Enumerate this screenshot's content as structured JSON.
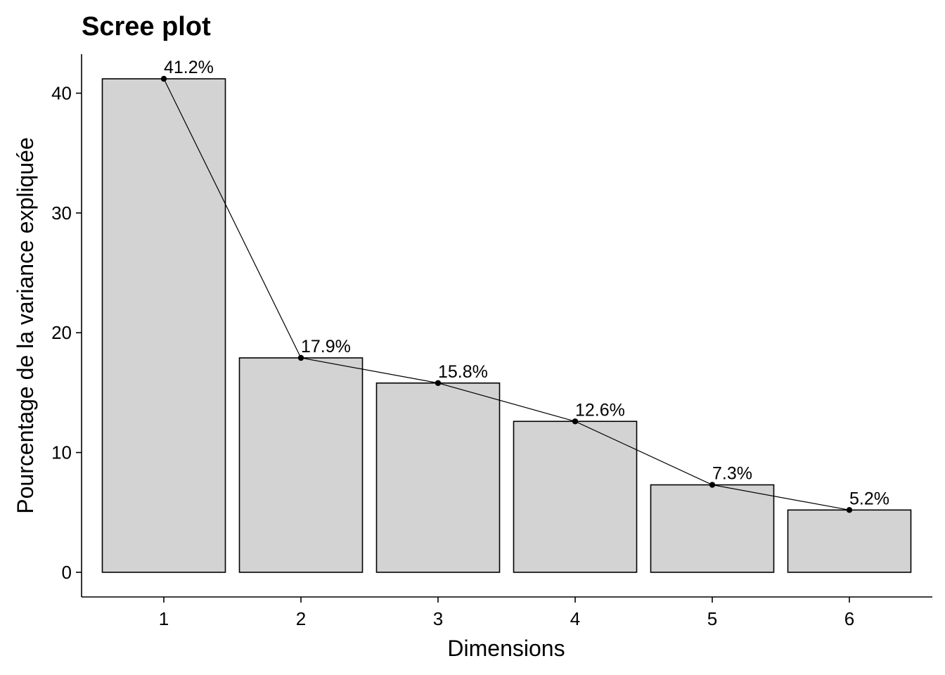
{
  "chart_data": {
    "type": "bar",
    "title": "Scree plot",
    "xlabel": "Dimensions",
    "ylabel": "Pourcentage de la variance expliquée",
    "categories": [
      "1",
      "2",
      "3",
      "4",
      "5",
      "6"
    ],
    "values": [
      41.2,
      17.9,
      15.8,
      12.6,
      7.3,
      5.2
    ],
    "data_labels": [
      "41.2%",
      "17.9%",
      "15.8%",
      "12.6%",
      "7.3%",
      "5.2%"
    ],
    "yticks": [
      0,
      10,
      20,
      30,
      40
    ],
    "ylim": [
      -2.06,
      43.26
    ],
    "grid": false,
    "legend": "none",
    "overlay": "line with points through bar tops",
    "colors": {
      "bar_fill": "#d3d3d3",
      "bar_outline": "#000000",
      "line": "#000000"
    }
  }
}
